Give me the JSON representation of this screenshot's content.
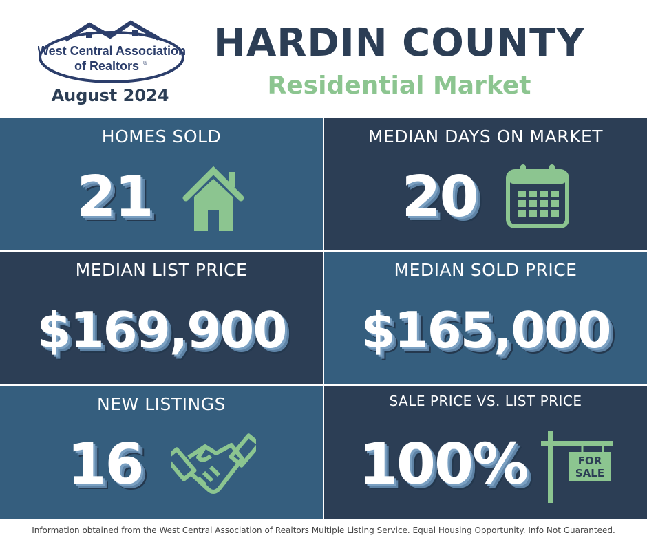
{
  "header": {
    "logo_line1": "West Central Association",
    "logo_line2": "of Realtors",
    "logo_mark": "®",
    "period": "August 2024",
    "title": "HARDIN COUNTY",
    "subtitle": "Residential Market"
  },
  "stats": [
    {
      "label": "HOMES SOLD",
      "value": "21"
    },
    {
      "label": "MEDIAN DAYS ON MARKET",
      "value": "20"
    },
    {
      "label": "MEDIAN LIST PRICE",
      "value": "$169,900"
    },
    {
      "label": "MEDIAN SOLD PRICE",
      "value": "$165,000"
    },
    {
      "label": "NEW LISTINGS",
      "value": "16"
    },
    {
      "label": "SALE PRICE VS. LIST PRICE",
      "value": "100%"
    }
  ],
  "sign": {
    "line1": "FOR",
    "line2": "SALE"
  },
  "footer": "Information obtained from the West Central Association of Realtors Multiple Listing Service. Equal Housing Opportunity. Info Not Guaranteed."
}
